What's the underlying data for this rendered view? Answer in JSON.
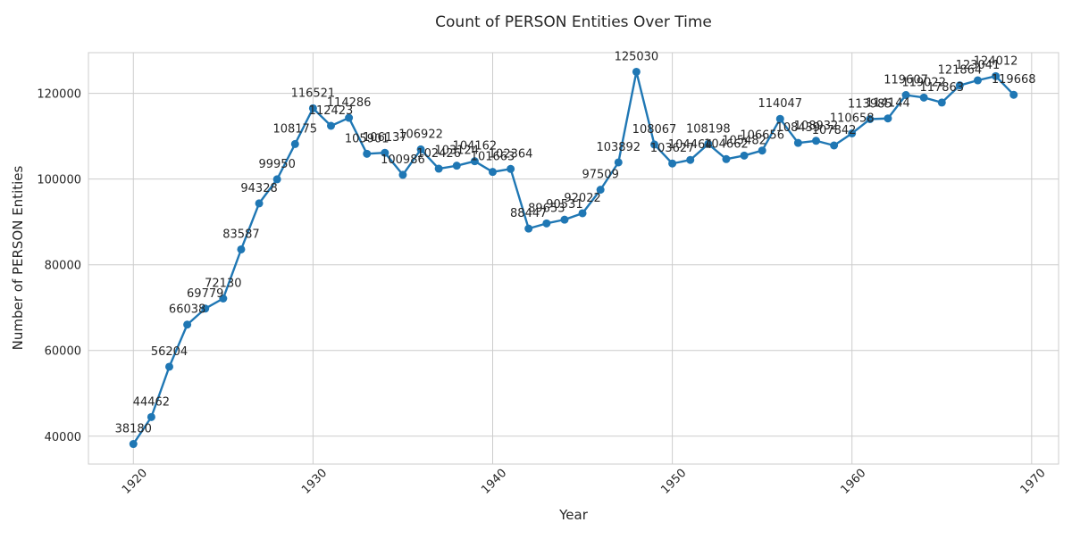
{
  "chart_data": {
    "type": "line",
    "title": "Count of PERSON Entities Over Time",
    "xlabel": "Year",
    "ylabel": "Number of PERSON Entities",
    "xlim": [
      1917.5,
      1971.5
    ],
    "ylim": [
      33500,
      129500
    ],
    "xticks": [
      1920,
      1930,
      1940,
      1950,
      1960,
      1970
    ],
    "yticks": [
      40000,
      60000,
      80000,
      100000,
      120000
    ],
    "grid": true,
    "colors": {
      "line": "#1f77b4",
      "grid": "#cccccc",
      "frame": "#cccccc"
    },
    "series": [
      {
        "x": [
          1920,
          1921,
          1922,
          1923,
          1924,
          1925,
          1926,
          1927,
          1928,
          1929,
          1930,
          1931,
          1932,
          1933,
          1934,
          1935,
          1936,
          1937,
          1938,
          1939,
          1940,
          1941,
          1942,
          1943,
          1944,
          1945,
          1946,
          1947,
          1948,
          1949,
          1950,
          1951,
          1952,
          1953,
          1954,
          1955,
          1956,
          1957,
          1958,
          1959,
          1960,
          1961,
          1962,
          1963,
          1964,
          1965,
          1966,
          1967,
          1968,
          1969
        ],
        "values": [
          38180,
          44462,
          56204,
          66038,
          69779,
          72130,
          83587,
          94328,
          99950,
          108175,
          116521,
          112423,
          114286,
          105901,
          106137,
          100986,
          106922,
          102426,
          103124,
          104162,
          101663,
          102364,
          88447,
          89653,
          90531,
          92022,
          97509,
          103892,
          125030,
          108067,
          103627,
          104464,
          108198,
          104662,
          105482,
          106656,
          114047,
          108439,
          108932,
          107842,
          110658,
          113985,
          114144,
          119607,
          119022,
          117863,
          121864,
          123041,
          124012,
          119668
        ]
      }
    ]
  }
}
